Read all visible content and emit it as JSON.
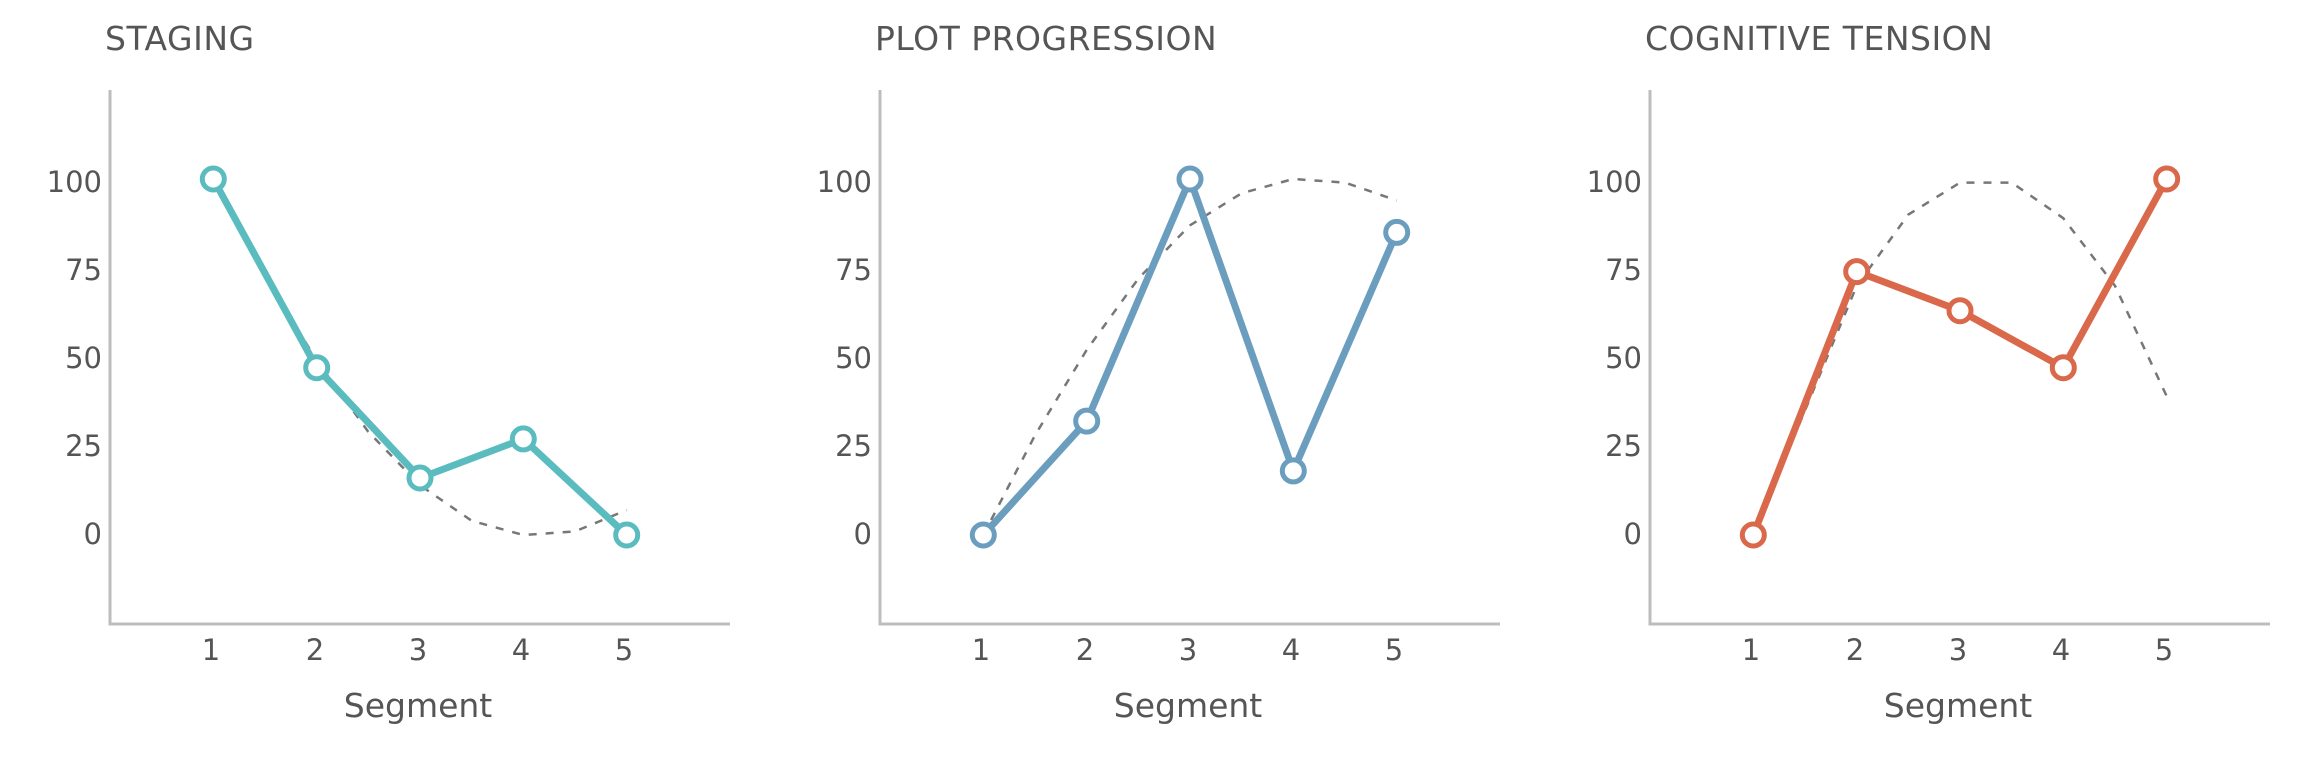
{
  "chart_data": [
    {
      "type": "line",
      "title": "STAGING",
      "xlabel": "Segment",
      "ylabel": "",
      "x": [
        1,
        2,
        3,
        4,
        5
      ],
      "x_tick_labels": [
        "1",
        "2",
        "3",
        "4",
        "5"
      ],
      "y_tick_labels": [
        "0",
        "25",
        "50",
        "75",
        "100"
      ],
      "y_ticks": [
        0,
        25,
        50,
        75,
        100
      ],
      "xlim": [
        0,
        6
      ],
      "ylim": [
        -25,
        125
      ],
      "series": [
        {
          "values": [
            100,
            47,
            16,
            27,
            0
          ],
          "color": "#5bbcbf",
          "marker": "open-circle"
        }
      ],
      "trend": {
        "style": "dashed",
        "color": "#777777",
        "x": [
          1,
          1.5,
          2,
          2.5,
          3,
          3.5,
          4,
          4.5,
          5
        ],
        "values": [
          100,
          73,
          49,
          29,
          14,
          4,
          0,
          1,
          7
        ]
      }
    },
    {
      "type": "line",
      "title": "PLOT PROGRESSION",
      "xlabel": "Segment",
      "ylabel": "",
      "x": [
        1,
        2,
        3,
        4,
        5
      ],
      "x_tick_labels": [
        "1",
        "2",
        "3",
        "4",
        "5"
      ],
      "y_tick_labels": [
        "0",
        "25",
        "50",
        "75",
        "100"
      ],
      "y_ticks": [
        0,
        25,
        50,
        75,
        100
      ],
      "xlim": [
        0,
        6
      ],
      "ylim": [
        -25,
        125
      ],
      "series": [
        {
          "values": [
            0,
            32,
            100,
            18,
            85
          ],
          "color": "#6b9ebe",
          "marker": "open-circle"
        }
      ],
      "trend": {
        "style": "dashed",
        "color": "#777777",
        "x": [
          1,
          1.5,
          2,
          2.5,
          3,
          3.5,
          4,
          4.5,
          5
        ],
        "values": [
          0,
          28,
          52,
          72,
          87,
          96,
          100,
          99,
          94
        ]
      }
    },
    {
      "type": "line",
      "title": "COGNITIVE TENSION",
      "xlabel": "Segment",
      "ylabel": "",
      "x": [
        1,
        2,
        3,
        4,
        5
      ],
      "x_tick_labels": [
        "1",
        "2",
        "3",
        "4",
        "5"
      ],
      "y_tick_labels": [
        "0",
        "25",
        "50",
        "75",
        "100"
      ],
      "y_ticks": [
        0,
        25,
        50,
        75,
        100
      ],
      "xlim": [
        0,
        6
      ],
      "ylim": [
        -25,
        125
      ],
      "series": [
        {
          "values": [
            0,
            74,
            63,
            47,
            100
          ],
          "color": "#d9694a",
          "marker": "open-circle"
        }
      ],
      "trend": {
        "style": "dashed",
        "color": "#777777",
        "x": [
          1,
          1.5,
          2,
          2.5,
          3,
          3.5,
          4,
          4.5,
          5
        ],
        "values": [
          0,
          35,
          70,
          90,
          99,
          99,
          89,
          70,
          39
        ]
      }
    }
  ]
}
